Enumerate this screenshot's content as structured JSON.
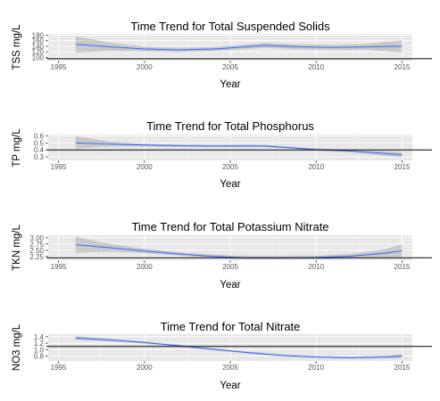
{
  "colors": {
    "panel": "#e6e6e6",
    "grid_major": "#ffffff",
    "grid_minor": "#f2f2f2",
    "smooth_line": "#3366ff",
    "ribbon": "#999999",
    "ref_line": "#000000",
    "tick_text": "#555555"
  },
  "chart_data": [
    {
      "type": "line",
      "title": "Time Trend for Total Suspended Solids",
      "xlabel": "Year",
      "ylabel": "TSS mg/L",
      "xlim": [
        1994.4,
        2015.6
      ],
      "ylim": [
        88,
        185
      ],
      "x_ticks": [
        1995,
        2000,
        2005,
        2010,
        2015
      ],
      "x_tick_labels": [
        "1995",
        "2000",
        "2005",
        "2010",
        "2015"
      ],
      "y_ticks": [
        100,
        120,
        140,
        160,
        180
      ],
      "y_tick_labels": [
        "100",
        "120",
        "140",
        "160",
        "180"
      ],
      "reference_line": 95,
      "grid": true,
      "series": [
        {
          "x": [
            1996,
            1998,
            2000,
            2002,
            2004,
            2005,
            2007,
            2009,
            2011,
            2013,
            2015
          ],
          "y": [
            147,
            138,
            130,
            127,
            130,
            134,
            143,
            138,
            136,
            138,
            140
          ],
          "ci_lower": [
            117,
            123,
            121,
            119,
            122,
            126,
            134,
            129,
            127,
            127,
            118
          ],
          "ci_upper": [
            177,
            153,
            139,
            135,
            138,
            142,
            152,
            147,
            145,
            149,
            162
          ]
        }
      ]
    },
    {
      "type": "line",
      "title": "Time Trend for Total Phosphorus",
      "xlabel": "Year",
      "ylabel": "TP mg/L",
      "xlim": [
        1994.4,
        2015.6
      ],
      "ylim": [
        0.25,
        0.62
      ],
      "x_ticks": [
        1995,
        2000,
        2005,
        2010,
        2015
      ],
      "x_tick_labels": [
        "1995",
        "2000",
        "2005",
        "2010",
        "2015"
      ],
      "y_ticks": [
        0.3,
        0.4,
        0.5,
        0.6
      ],
      "y_tick_labels": [
        "0.3",
        "0.4",
        "0.5",
        "0.6"
      ],
      "reference_line": 0.4,
      "grid": true,
      "series": [
        {
          "x": [
            1996,
            1998,
            2000,
            2002,
            2004,
            2006,
            2007,
            2008,
            2010,
            2012,
            2015
          ],
          "y": [
            0.5,
            0.485,
            0.47,
            0.46,
            0.455,
            0.458,
            0.455,
            0.44,
            0.405,
            0.385,
            0.33
          ],
          "ci_lower": [
            0.42,
            0.45,
            0.45,
            0.445,
            0.44,
            0.442,
            0.44,
            0.425,
            0.39,
            0.365,
            0.29
          ],
          "ci_upper": [
            0.6,
            0.52,
            0.49,
            0.475,
            0.47,
            0.474,
            0.47,
            0.455,
            0.42,
            0.405,
            0.37
          ]
        }
      ]
    },
    {
      "type": "line",
      "title": "Time Trend for Total Potassium Nitrate",
      "xlabel": "Year",
      "ylabel": "TKN mg/L",
      "xlim": [
        1994.4,
        2015.6
      ],
      "ylim": [
        2.1,
        3.1
      ],
      "x_ticks": [
        1995,
        2000,
        2005,
        2010,
        2015
      ],
      "x_tick_labels": [
        "1995",
        "2000",
        "2005",
        "2010",
        "2015"
      ],
      "y_ticks": [
        2.25,
        2.5,
        2.75,
        3.0
      ],
      "y_tick_labels": [
        "2.25",
        "2.50",
        "2.75",
        "3.00"
      ],
      "reference_line": 2.2,
      "grid": true,
      "series": [
        {
          "x": [
            1996,
            1998,
            2000,
            2002,
            2004,
            2006,
            2008,
            2010,
            2012,
            2014,
            2015
          ],
          "y": [
            2.72,
            2.6,
            2.47,
            2.35,
            2.25,
            2.2,
            2.2,
            2.21,
            2.26,
            2.38,
            2.48
          ],
          "ci_lower": [
            2.4,
            2.45,
            2.38,
            2.28,
            2.18,
            2.13,
            2.13,
            2.14,
            2.17,
            2.22,
            2.22
          ],
          "ci_upper": [
            3.04,
            2.75,
            2.56,
            2.42,
            2.32,
            2.27,
            2.27,
            2.28,
            2.35,
            2.54,
            2.74
          ]
        }
      ]
    },
    {
      "type": "line",
      "title": "Time Trend for Total Nitrate",
      "xlabel": "Year",
      "ylabel": "NO3 mg/L",
      "xlim": [
        1994.4,
        2015.6
      ],
      "ylim": [
        0.65,
        1.48
      ],
      "x_ticks": [
        1995,
        2000,
        2005,
        2010,
        2015
      ],
      "x_tick_labels": [
        "1995",
        "2000",
        "2005",
        "2010",
        "2015"
      ],
      "y_ticks": [
        0.8,
        1.0,
        1.2,
        1.4
      ],
      "y_tick_labels": [
        "0.8",
        "1.0",
        "1.2",
        "1.4"
      ],
      "reference_line": 1.1,
      "grid": true,
      "series": [
        {
          "x": [
            1996,
            1998,
            2000,
            2002,
            2004,
            2006,
            2008,
            2010,
            2012,
            2014,
            2015
          ],
          "y": [
            1.36,
            1.3,
            1.22,
            1.12,
            1.01,
            0.91,
            0.82,
            0.77,
            0.75,
            0.77,
            0.8
          ],
          "ci_lower": [
            1.3,
            1.26,
            1.19,
            1.09,
            0.98,
            0.88,
            0.79,
            0.74,
            0.72,
            0.73,
            0.74
          ],
          "ci_upper": [
            1.42,
            1.34,
            1.25,
            1.15,
            1.04,
            0.94,
            0.85,
            0.8,
            0.78,
            0.81,
            0.86
          ]
        }
      ]
    }
  ]
}
